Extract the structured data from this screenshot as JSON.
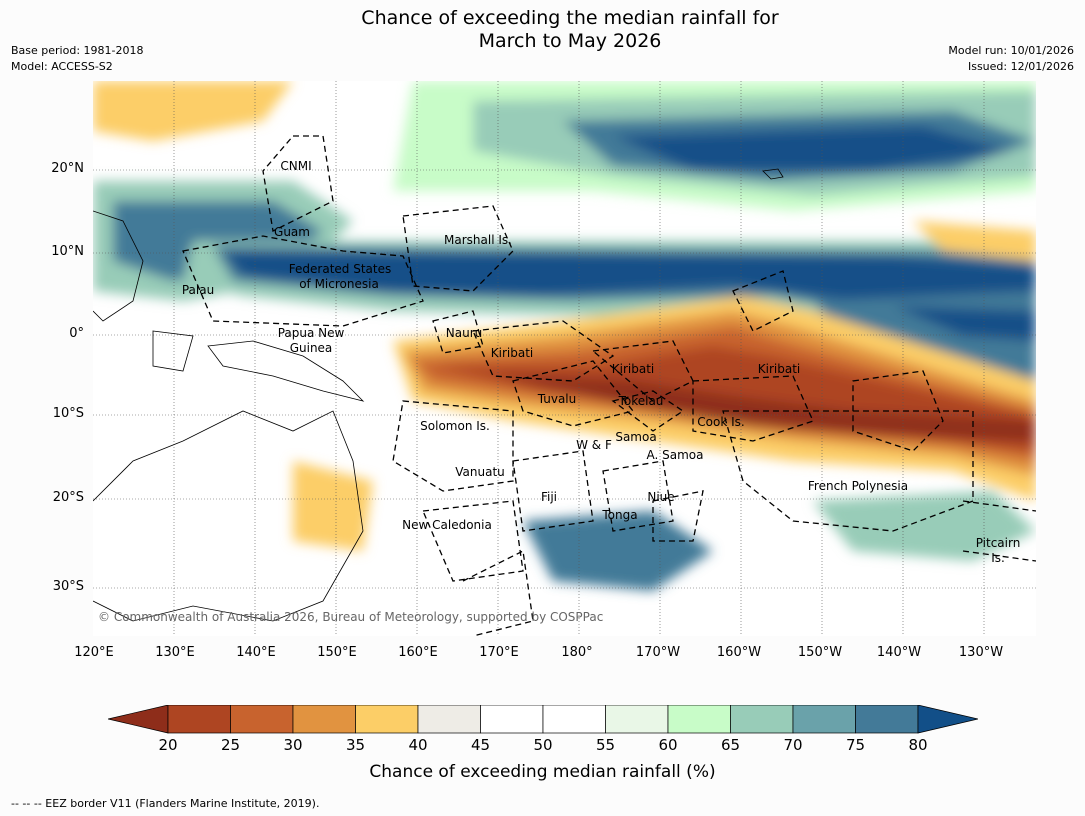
{
  "title_line1": "Chance of exceeding the median rainfall for",
  "title_line2": "March to May 2026",
  "base_period": "Base period: 1981-2018",
  "model": "Model: ACCESS-S2",
  "model_run": "Model run: 10/01/2026",
  "issued": "Issued: 12/01/2026",
  "lat_labels": [
    "20°N",
    "10°N",
    "0°",
    "10°S",
    "20°S",
    "30°S"
  ],
  "lon_labels": [
    "120°E",
    "130°E",
    "140°E",
    "150°E",
    "160°E",
    "170°E",
    "180°",
    "170°W",
    "160°W",
    "150°W",
    "140°W",
    "130°W"
  ],
  "regions": {
    "cnmi": "CNMI",
    "guam": "Guam",
    "marshall": "Marshall Is.",
    "fsm_line1": "Federated States",
    "fsm_line2": "of Micronesia",
    "palau": "Palau",
    "png_line1": "Papua New",
    "png_line2": "Guinea",
    "nauru": "Nauru",
    "kiribati_west": "Kiribati",
    "kiribati_central": "Kiribati",
    "kiribati_east": "Kiribati",
    "tuvalu": "Tuvalu",
    "tokelau": "Tokelau",
    "cook": "Cook Is.",
    "solomon": "Solomon Is.",
    "wf": "W & F",
    "samoa": "Samoa",
    "asamoa": "A. Samoa",
    "vanuatu": "Vanuatu",
    "fiji": "Fiji",
    "niue": "Niue",
    "tonga": "Tonga",
    "french_polynesia": "French Polynesia",
    "new_caledonia": "New Caledonia",
    "pitcairn_line1": "Pitcairn",
    "pitcairn_line2": "Is."
  },
  "copyright": "© Commonwealth of Australia 2026, Bureau of Meteorology, supported by COSPPac",
  "colorbar": {
    "title": "Chance of exceeding median rainfall (%)",
    "ticks": [
      "20",
      "25",
      "30",
      "35",
      "40",
      "45",
      "50",
      "55",
      "60",
      "65",
      "70",
      "75",
      "80"
    ],
    "colors": [
      "#8e2d1a",
      "#ae4522",
      "#c8632e",
      "#e19340",
      "#fcce67",
      "#eeece6",
      "#ffffff",
      "#ffffff",
      "#e9f7e7",
      "#c8fcc8",
      "#98ccb8",
      "#6aa2aa",
      "#437a98",
      "#124f88"
    ]
  },
  "footer": "--  --  -- EEZ border V11 (Flanders Marine Institute, 2019)."
}
